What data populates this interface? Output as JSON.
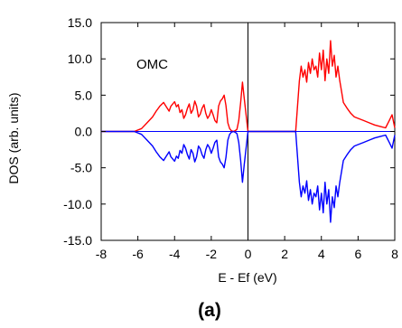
{
  "chart_data": {
    "type": "line",
    "title": "",
    "xlabel": "E - Ef (eV)",
    "ylabel": "DOS (arb. units)",
    "xlim": [
      -8,
      8
    ],
    "ylim": [
      -15,
      15
    ],
    "xticks": [
      -8,
      -6,
      -4,
      -2,
      0,
      2,
      4,
      6,
      8
    ],
    "yticks": [
      15,
      10,
      5,
      0,
      -5,
      -10,
      -15
    ],
    "ytick_labels": [
      "15.0",
      "10.0",
      "5.0",
      "0.0",
      "-5.0",
      "-10.0",
      "-15.0"
    ],
    "annotation": "OMC",
    "panel_label": "(a)",
    "grid": false,
    "reference_lines": {
      "vertical_x": 0,
      "horizontal_y": 0
    },
    "colors": {
      "spin_up": "#ff0000",
      "spin_down": "#0000ff",
      "axes": "#000000"
    },
    "series": [
      {
        "x": [
          -8,
          -6.2,
          -5.8,
          -5.5,
          -5.2,
          -5.0,
          -4.8,
          -4.6,
          -4.5,
          -4.4,
          -4.3,
          -4.2,
          -4.0,
          -3.9,
          -3.8,
          -3.7,
          -3.6,
          -3.5,
          -3.4,
          -3.3,
          -3.2,
          -3.1,
          -3.0,
          -2.9,
          -2.8,
          -2.7,
          -2.6,
          -2.5,
          -2.4,
          -2.3,
          -2.2,
          -2.1,
          -2.0,
          -1.9,
          -1.8,
          -1.7,
          -1.6,
          -1.5,
          -1.4,
          -1.3,
          -1.2,
          -1.1,
          -1.0,
          -0.9,
          -0.8,
          -0.7,
          -0.6,
          -0.5,
          -0.4,
          -0.3,
          -0.2,
          0.0,
          2.6,
          2.8,
          2.9,
          3.0,
          3.1,
          3.2,
          3.3,
          3.4,
          3.5,
          3.6,
          3.7,
          3.8,
          3.9,
          4.0,
          4.1,
          4.2,
          4.3,
          4.4,
          4.5,
          4.6,
          4.7,
          4.8,
          4.9,
          5.0,
          5.1,
          5.2,
          5.4,
          5.6,
          5.8,
          6.0,
          6.3,
          6.6,
          6.9,
          7.2,
          7.5,
          7.7,
          7.85,
          8.0
        ],
        "values": [
          0,
          0,
          0.4,
          1.2,
          2.0,
          2.8,
          3.5,
          4.0,
          3.6,
          3.2,
          2.8,
          3.5,
          4.1,
          3.4,
          3.7,
          2.6,
          3.0,
          1.8,
          2.3,
          3.2,
          3.8,
          2.5,
          3.0,
          4.2,
          3.5,
          2.0,
          2.4,
          3.2,
          3.7,
          2.5,
          1.8,
          2.2,
          3.0,
          2.3,
          1.5,
          1.2,
          3.5,
          4.2,
          4.5,
          5.0,
          3.6,
          1.2,
          0.4,
          0.1,
          0.0,
          0.1,
          0.3,
          1.5,
          4.0,
          6.8,
          4.5,
          0,
          0,
          7.0,
          9.0,
          7.5,
          8.5,
          6.8,
          9.5,
          8.0,
          10.0,
          8.5,
          9.0,
          7.5,
          10.8,
          8.5,
          11.2,
          7.0,
          10.0,
          8.0,
          12.5,
          9.0,
          10.5,
          7.5,
          9.0,
          7.0,
          5.5,
          4.0,
          3.2,
          2.5,
          2.0,
          1.8,
          1.5,
          1.2,
          0.9,
          0.7,
          0.5,
          1.5,
          2.3,
          0.5
        ]
      },
      {
        "x": [
          -8,
          -6.2,
          -5.8,
          -5.5,
          -5.2,
          -5.0,
          -4.8,
          -4.6,
          -4.5,
          -4.4,
          -4.3,
          -4.2,
          -4.0,
          -3.9,
          -3.8,
          -3.7,
          -3.6,
          -3.5,
          -3.4,
          -3.3,
          -3.2,
          -3.1,
          -3.0,
          -2.9,
          -2.8,
          -2.7,
          -2.6,
          -2.5,
          -2.4,
          -2.3,
          -2.2,
          -2.1,
          -2.0,
          -1.9,
          -1.8,
          -1.7,
          -1.6,
          -1.5,
          -1.4,
          -1.3,
          -1.2,
          -1.1,
          -1.0,
          -0.9,
          -0.8,
          -0.7,
          -0.6,
          -0.5,
          -0.4,
          -0.3,
          -0.2,
          0.0,
          2.6,
          2.8,
          2.9,
          3.0,
          3.1,
          3.2,
          3.3,
          3.4,
          3.5,
          3.6,
          3.7,
          3.8,
          3.9,
          4.0,
          4.1,
          4.2,
          4.3,
          4.4,
          4.5,
          4.6,
          4.7,
          4.8,
          4.9,
          5.0,
          5.1,
          5.2,
          5.4,
          5.6,
          5.8,
          6.0,
          6.3,
          6.6,
          6.9,
          7.2,
          7.5,
          7.7,
          7.85,
          8.0
        ],
        "values": [
          0,
          0,
          -0.4,
          -1.2,
          -2.0,
          -2.8,
          -3.5,
          -4.0,
          -3.6,
          -3.2,
          -2.8,
          -3.5,
          -4.1,
          -3.4,
          -3.7,
          -2.6,
          -3.0,
          -1.8,
          -2.3,
          -3.2,
          -3.8,
          -2.5,
          -3.0,
          -4.2,
          -3.5,
          -2.0,
          -2.4,
          -3.2,
          -3.7,
          -2.5,
          -1.8,
          -2.2,
          -3.0,
          -2.3,
          -1.5,
          -1.2,
          -3.5,
          -4.2,
          -4.5,
          -5.0,
          -3.6,
          -1.2,
          -0.4,
          -0.1,
          0.0,
          -0.1,
          -0.3,
          -1.5,
          -4.0,
          -7.0,
          -4.5,
          0,
          0,
          -7.0,
          -9.0,
          -7.5,
          -8.5,
          -6.8,
          -9.5,
          -8.0,
          -10.0,
          -8.5,
          -9.0,
          -7.5,
          -10.8,
          -8.5,
          -11.2,
          -7.0,
          -10.0,
          -8.0,
          -12.5,
          -9.0,
          -10.5,
          -7.5,
          -9.0,
          -7.0,
          -5.5,
          -4.0,
          -3.2,
          -2.5,
          -2.0,
          -1.8,
          -1.5,
          -1.2,
          -0.9,
          -0.7,
          -0.5,
          -1.5,
          -2.3,
          -0.5
        ]
      }
    ]
  }
}
